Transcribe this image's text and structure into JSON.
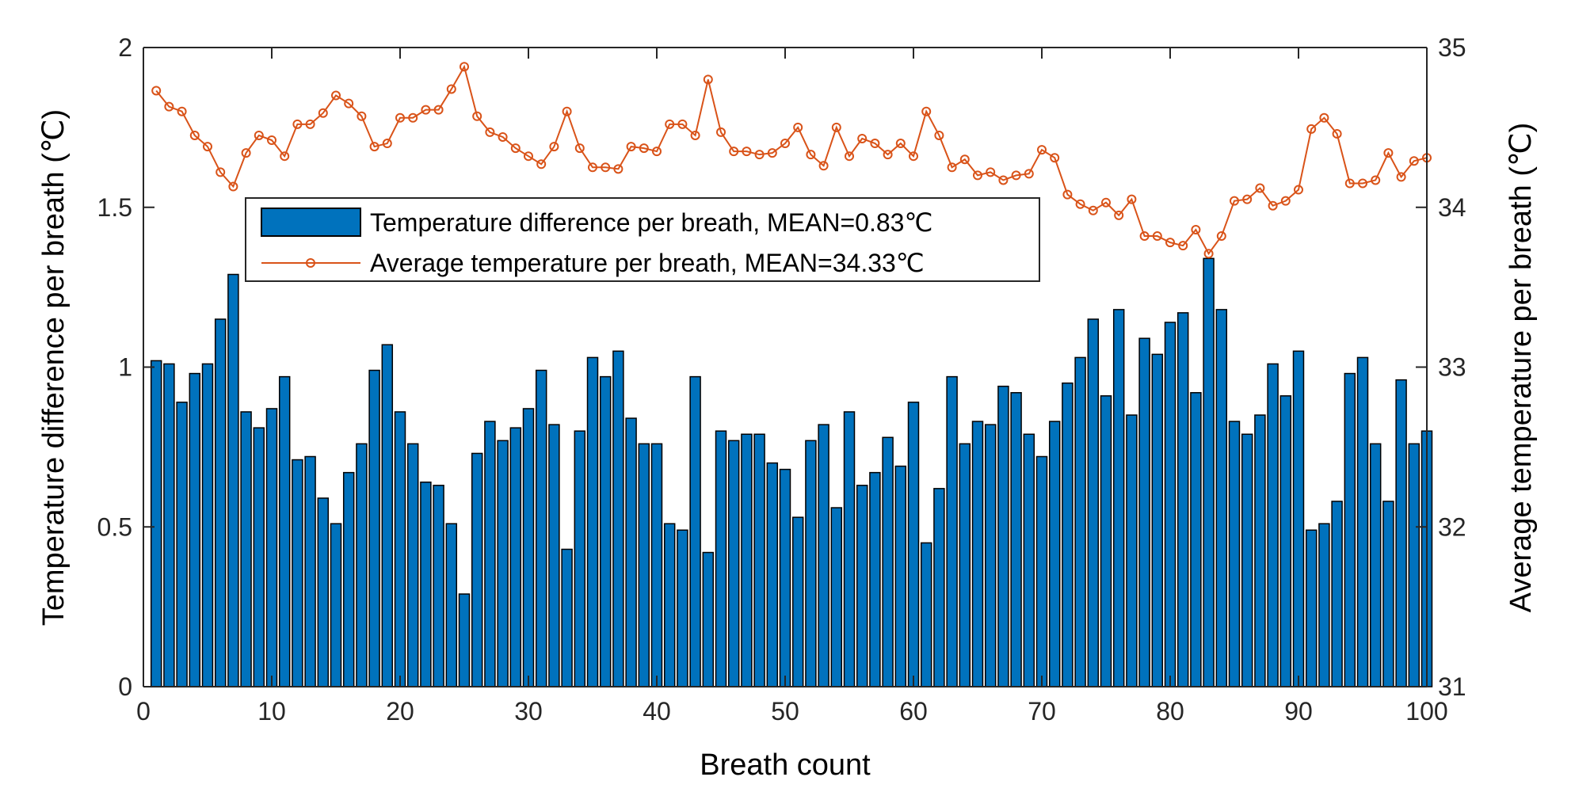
{
  "chart_data": {
    "type": "bar",
    "xlabel": "Breath count",
    "ylabel_left": "Temperature difference per breath (℃)",
    "ylabel_right": "Average temperature per breath (℃)",
    "xlim": [
      0,
      100
    ],
    "ylim_left": [
      0,
      2
    ],
    "ylim_right": [
      31,
      35
    ],
    "x_ticks": [
      "0",
      "10",
      "20",
      "30",
      "40",
      "50",
      "60",
      "70",
      "80",
      "90",
      "100"
    ],
    "y_left_ticks": [
      "0",
      "0.5",
      "1",
      "1.5",
      "2"
    ],
    "y_right_ticks": [
      "31",
      "32",
      "33",
      "34",
      "35"
    ],
    "grid": false,
    "legend_position": "upper-left",
    "x": [
      1,
      2,
      3,
      4,
      5,
      6,
      7,
      8,
      9,
      10,
      11,
      12,
      13,
      14,
      15,
      16,
      17,
      18,
      19,
      20,
      21,
      22,
      23,
      24,
      25,
      26,
      27,
      28,
      29,
      30,
      31,
      32,
      33,
      34,
      35,
      36,
      37,
      38,
      39,
      40,
      41,
      42,
      43,
      44,
      45,
      46,
      47,
      48,
      49,
      50,
      51,
      52,
      53,
      54,
      55,
      56,
      57,
      58,
      59,
      60,
      61,
      62,
      63,
      64,
      65,
      66,
      67,
      68,
      69,
      70,
      71,
      72,
      73,
      74,
      75,
      76,
      77,
      78,
      79,
      80,
      81,
      82,
      83,
      84,
      85,
      86,
      87,
      88,
      89,
      90,
      91,
      92,
      93,
      94,
      95,
      96,
      97,
      98,
      99,
      100
    ],
    "series": [
      {
        "name": "Temperature difference per breath, MEAN=0.83℃",
        "type": "bar",
        "axis": "left",
        "color": "#0072BD",
        "values": [
          1.02,
          1.01,
          0.89,
          0.98,
          1.01,
          1.15,
          1.29,
          0.86,
          0.81,
          0.87,
          0.97,
          0.71,
          0.72,
          0.59,
          0.51,
          0.67,
          0.76,
          0.99,
          1.07,
          0.86,
          0.76,
          0.64,
          0.63,
          0.51,
          0.29,
          0.73,
          0.83,
          0.77,
          0.81,
          0.87,
          0.99,
          0.82,
          0.43,
          0.8,
          1.03,
          0.97,
          1.05,
          0.84,
          0.76,
          0.76,
          0.51,
          0.49,
          0.97,
          0.42,
          0.8,
          0.77,
          0.79,
          0.79,
          0.7,
          0.68,
          0.53,
          0.77,
          0.82,
          0.56,
          0.86,
          0.63,
          0.67,
          0.78,
          0.69,
          0.89,
          0.45,
          0.62,
          0.97,
          0.76,
          0.83,
          0.82,
          0.94,
          0.92,
          0.79,
          0.72,
          0.83,
          0.95,
          1.03,
          1.15,
          0.91,
          1.18,
          0.85,
          1.09,
          1.04,
          1.14,
          1.17,
          0.92,
          1.34,
          1.18,
          0.83,
          0.79,
          0.85,
          1.01,
          0.91,
          1.05,
          0.49,
          0.51,
          0.58,
          0.98,
          1.03,
          0.76,
          0.58,
          0.96,
          0.76,
          0.8
        ]
      },
      {
        "name": "Average temperature per breath, MEAN=34.33℃",
        "type": "line",
        "axis": "right",
        "color": "#D95319",
        "marker": "circle",
        "values": [
          34.73,
          34.63,
          34.6,
          34.45,
          34.38,
          34.22,
          34.13,
          34.34,
          34.45,
          34.42,
          34.32,
          34.52,
          34.52,
          34.59,
          34.7,
          34.65,
          34.57,
          34.38,
          34.4,
          34.56,
          34.56,
          34.61,
          34.61,
          34.74,
          34.88,
          34.57,
          34.47,
          34.44,
          34.37,
          34.32,
          34.27,
          34.38,
          34.6,
          34.37,
          34.25,
          34.25,
          34.24,
          34.38,
          34.37,
          34.35,
          34.52,
          34.52,
          34.45,
          34.8,
          34.47,
          34.35,
          34.35,
          34.33,
          34.34,
          34.4,
          34.5,
          34.33,
          34.26,
          34.5,
          34.32,
          34.43,
          34.4,
          34.33,
          34.4,
          34.32,
          34.6,
          34.45,
          34.25,
          34.3,
          34.2,
          34.22,
          34.17,
          34.2,
          34.21,
          34.36,
          34.31,
          34.08,
          34.02,
          33.98,
          34.03,
          33.95,
          34.05,
          33.82,
          33.82,
          33.78,
          33.76,
          33.86,
          33.71,
          33.82,
          34.04,
          34.05,
          34.12,
          34.01,
          34.04,
          34.11,
          34.49,
          34.56,
          34.46,
          34.15,
          34.15,
          34.17,
          34.34,
          34.19,
          34.29,
          34.31
        ]
      }
    ]
  }
}
